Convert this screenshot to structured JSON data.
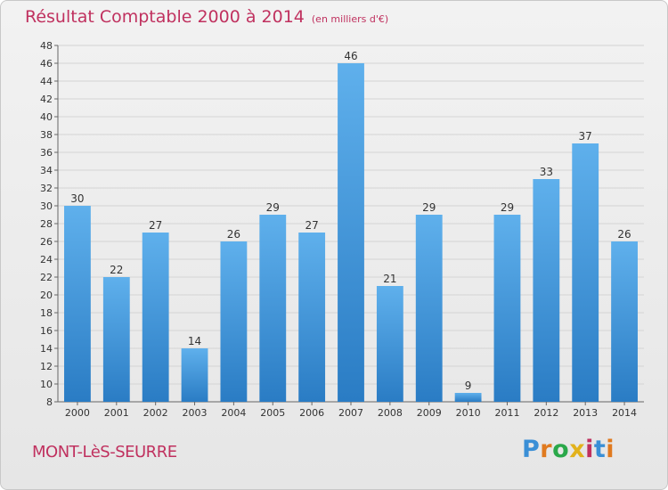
{
  "header": {
    "title": "Résultat Comptable 2000 à 2014",
    "subtitle": "(en milliers d'€)"
  },
  "footer": {
    "commune": "MONT-LèS-SEURRE",
    "brand": "Proxiti"
  },
  "colors": {
    "title": "#c0315f",
    "bar_light": "#5fb0ec",
    "bar_dark": "#2a7cc4",
    "logo": [
      "#3a8fd6",
      "#e07a1f",
      "#2aa84a",
      "#e2b21c",
      "#c0315f",
      "#3a8fd6",
      "#e07a1f"
    ]
  },
  "chart_data": {
    "type": "bar",
    "title": "Résultat Comptable 2000 à 2014",
    "subtitle": "(en milliers d'€)",
    "xlabel": "",
    "ylabel": "",
    "categories": [
      "2000",
      "2001",
      "2002",
      "2003",
      "2004",
      "2005",
      "2006",
      "2007",
      "2008",
      "2009",
      "2010",
      "2011",
      "2012",
      "2013",
      "2014"
    ],
    "values": [
      30,
      22,
      27,
      14,
      26,
      29,
      27,
      46,
      21,
      29,
      9,
      29,
      33,
      37,
      26
    ],
    "ylim": [
      8,
      48
    ],
    "yticks": [
      8,
      10,
      12,
      14,
      16,
      18,
      20,
      22,
      24,
      26,
      28,
      30,
      32,
      34,
      36,
      38,
      40,
      42,
      44,
      46,
      48
    ],
    "grid": true
  }
}
